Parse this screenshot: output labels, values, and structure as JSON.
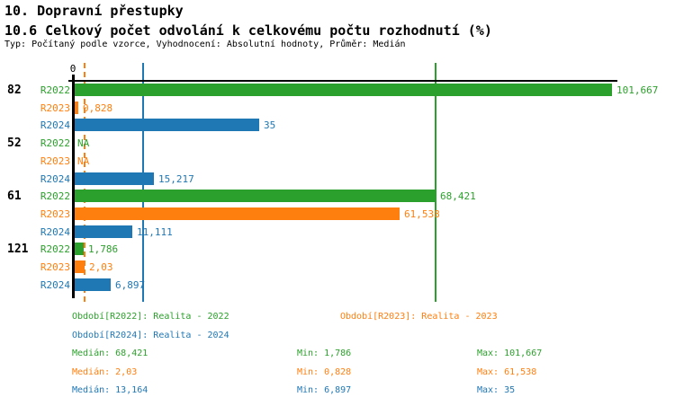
{
  "header": {
    "title": "10. Dopravní přestupky",
    "subtitle": "10.6 Celkový počet odvolání k celkovému počtu rozhodnutí (%)",
    "meta": "Typ: Počítaný podle vzorce, Vyhodnocení: Absolutní hodnoty, Průměr: Medián"
  },
  "chart_data": {
    "type": "bar",
    "orientation": "horizontal",
    "title": "10.6 Celkový počet odvolání k celkovému počtu rozhodnutí (%)",
    "x_axis": {
      "tick_labels": [
        "0"
      ],
      "range": [
        0,
        103
      ],
      "grid": false
    },
    "series_order": [
      "R2022",
      "R2023",
      "R2024"
    ],
    "series_colors": {
      "R2022": "#2ca02c",
      "R2023": "#ff7f0e",
      "R2024": "#1f77b4"
    },
    "groups": [
      {
        "label": "82",
        "bars": [
          {
            "series": "R2022",
            "value": 101.667,
            "display": "101,667"
          },
          {
            "series": "R2023",
            "value": 0.828,
            "display": "0,828"
          },
          {
            "series": "R2024",
            "value": 35,
            "display": "35"
          }
        ]
      },
      {
        "label": "52",
        "bars": [
          {
            "series": "R2022",
            "value": null,
            "display": "NA"
          },
          {
            "series": "R2023",
            "value": null,
            "display": "NA"
          },
          {
            "series": "R2024",
            "value": 15.217,
            "display": "15,217"
          }
        ]
      },
      {
        "label": "61",
        "bars": [
          {
            "series": "R2022",
            "value": 68.421,
            "display": "68,421"
          },
          {
            "series": "R2023",
            "value": 61.538,
            "display": "61,538"
          },
          {
            "series": "R2024",
            "value": 11.111,
            "display": "11,111"
          }
        ]
      },
      {
        "label": "121",
        "bars": [
          {
            "series": "R2022",
            "value": 1.786,
            "display": "1,786"
          },
          {
            "series": "R2023",
            "value": 2.03,
            "display": "2,03"
          },
          {
            "series": "R2024",
            "value": 6.897,
            "display": "6,897"
          }
        ]
      }
    ],
    "median_lines": [
      {
        "series": "R2022",
        "value": 68.421,
        "line_style": "solid"
      },
      {
        "series": "R2023",
        "value": 2.03,
        "line_style": "dashed"
      },
      {
        "series": "R2024",
        "value": 13.164,
        "line_style": "solid"
      }
    ]
  },
  "legend": [
    {
      "series": "R2022",
      "label": "Období[R2022]:",
      "value": "Realita - 2022"
    },
    {
      "series": "R2023",
      "label": "Období[R2023]:",
      "value": "Realita - 2023"
    },
    {
      "series": "R2024",
      "label": "Období[R2024]:",
      "value": "Realita - 2024"
    }
  ],
  "stats_labels": {
    "median": "Medián",
    "min": "Min",
    "max": "Max"
  },
  "stats_rows": [
    {
      "series": "R2022",
      "median": "68,421",
      "min": "1,786",
      "max": "101,667"
    },
    {
      "series": "R2023",
      "median": "2,03",
      "min": "0,828",
      "max": "61,538"
    },
    {
      "series": "R2024",
      "median": "13,164",
      "min": "6,897",
      "max": "35"
    }
  ]
}
